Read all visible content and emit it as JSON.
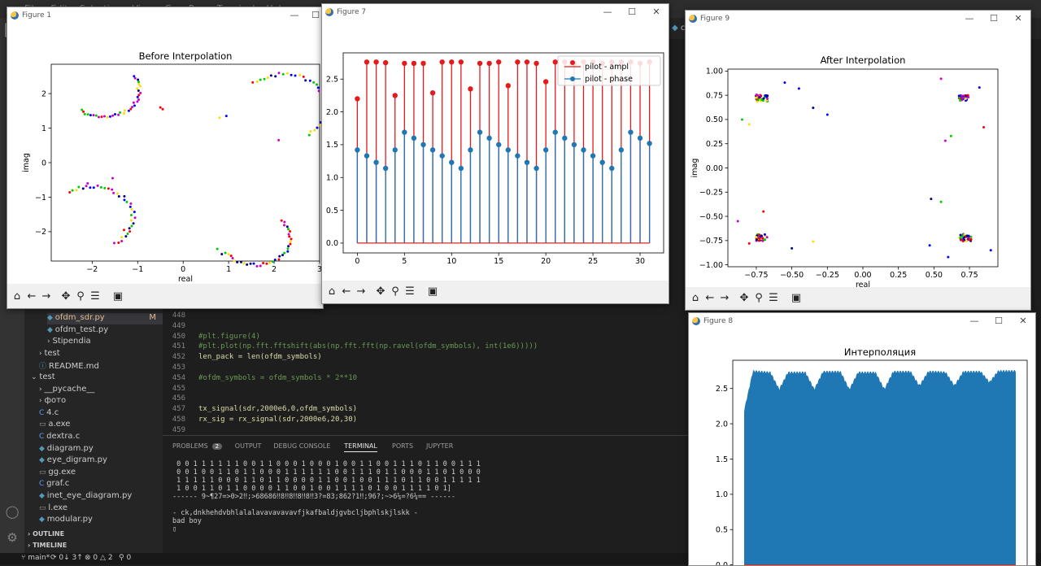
{
  "vscode": {
    "menu": [
      "File",
      "Edit",
      "Selection",
      "View",
      "Go",
      "Run",
      "Terminal",
      "Help"
    ],
    "tab_fragment": "clas",
    "sidebar": {
      "files": [
        {
          "name": "ofdm_sdr.py",
          "badge": "M",
          "icon": "python-icon",
          "indent": 2,
          "selected": true,
          "color": "#e2c08d"
        },
        {
          "name": "ofdm_test.py",
          "badge": "",
          "icon": "python-icon",
          "indent": 2,
          "selected": false,
          "color": "#cccccc"
        },
        {
          "name": "Stipendia",
          "badge": "",
          "icon": "chevron-right-icon",
          "indent": 2,
          "selected": false,
          "color": "#cccccc"
        },
        {
          "name": "test",
          "badge": "",
          "icon": "chevron-right-icon",
          "indent": 1,
          "selected": false,
          "color": "#cccccc"
        },
        {
          "name": "README.md",
          "badge": "",
          "icon": "info-icon",
          "indent": 1,
          "selected": false,
          "color": "#cccccc"
        },
        {
          "name": "test",
          "badge": "",
          "icon": "chevron-down-icon",
          "indent": 0,
          "selected": false,
          "color": "#cccccc"
        },
        {
          "name": "__pycache__",
          "badge": "",
          "icon": "chevron-right-icon",
          "indent": 1,
          "selected": false,
          "color": "#cccccc"
        },
        {
          "name": "фото",
          "badge": "",
          "icon": "chevron-right-icon",
          "indent": 1,
          "selected": false,
          "color": "#cccccc"
        },
        {
          "name": "4.c",
          "badge": "",
          "icon": "c-icon",
          "indent": 1,
          "selected": false,
          "color": "#cccccc"
        },
        {
          "name": "a.exe",
          "badge": "",
          "icon": "file-icon",
          "indent": 1,
          "selected": false,
          "color": "#cccccc"
        },
        {
          "name": "dextra.c",
          "badge": "",
          "icon": "c-icon",
          "indent": 1,
          "selected": false,
          "color": "#cccccc"
        },
        {
          "name": "diagram.py",
          "badge": "",
          "icon": "python-icon",
          "indent": 1,
          "selected": false,
          "color": "#cccccc"
        },
        {
          "name": "eye_digram.py",
          "badge": "",
          "icon": "python-icon",
          "indent": 1,
          "selected": false,
          "color": "#cccccc"
        },
        {
          "name": "gg.exe",
          "badge": "",
          "icon": "file-icon",
          "indent": 1,
          "selected": false,
          "color": "#cccccc"
        },
        {
          "name": "graf.c",
          "badge": "",
          "icon": "c-icon",
          "indent": 1,
          "selected": false,
          "color": "#cccccc"
        },
        {
          "name": "inet_eye_diagram.py",
          "badge": "",
          "icon": "python-icon",
          "indent": 1,
          "selected": false,
          "color": "#cccccc"
        },
        {
          "name": "l.exe",
          "badge": "",
          "icon": "file-icon",
          "indent": 1,
          "selected": false,
          "color": "#cccccc"
        },
        {
          "name": "modular.py",
          "badge": "",
          "icon": "python-icon",
          "indent": 1,
          "selected": false,
          "color": "#cccccc"
        }
      ],
      "outline": "OUTLINE",
      "timeline": "TIMELINE"
    },
    "editor_lines": [
      {
        "num": "448",
        "text": "",
        "color": "#d4d4d4"
      },
      {
        "num": "449",
        "text": "",
        "color": "#d4d4d4"
      },
      {
        "num": "450",
        "text": "#plt.figure(4)",
        "color": "#6a9955"
      },
      {
        "num": "451",
        "text": "#plt.plot(np.fft.fftshift(abs(np.fft.fft(np.ravel(ofdm_symbols), int(1e6)))))",
        "color": "#6a9955"
      },
      {
        "num": "452",
        "text": "len_pack = len(ofdm_symbols)",
        "color": "#dcdcaa"
      },
      {
        "num": "453",
        "text": "",
        "color": "#d4d4d4"
      },
      {
        "num": "454",
        "text": "#ofdm_symbols = ofdm_symbols * 2**10",
        "color": "#6a9955"
      },
      {
        "num": "455",
        "text": "",
        "color": "#d4d4d4"
      },
      {
        "num": "456",
        "text": "",
        "color": "#d4d4d4"
      },
      {
        "num": "457",
        "text": "tx_signal(sdr,2000e6,0,ofdm_symbols)",
        "color": "#dcdcaa"
      },
      {
        "num": "458",
        "text": "rx_sig = rx_signal(sdr,2000e6,20,30)",
        "color": "#dcdcaa"
      },
      {
        "num": "459",
        "text": "",
        "color": "#d4d4d4"
      }
    ],
    "panel_tabs": [
      "PROBLEMS",
      "OUTPUT",
      "DEBUG CONSOLE",
      "TERMINAL",
      "PORTS",
      "JUPYTER"
    ],
    "problems_count": "2",
    "active_panel_tab": "TERMINAL",
    "terminal_lines": [
      " 0 0 1 1 1 1 1 1 0 0 1 1 0 0 0 1 0 0 0 1 0 0 1 1 0 0 1 1 1 0 1 1 0 0 1 1 1",
      " 0 0 1 0 0 1 1 0 1 1 0 0 0 1 1 1 1 1 1 0 0 1 1 1 0 1 1 0 0 0 1 1 0 1 0 0 0",
      " 1 1 1 1 1 0 0 0 1 1 0 1 1 0 0 0 0 1 1 0 0 1 0 0 1 1 1 0 1 1 0 0 1 1 1 1 1",
      " 1 0 0 1 1 0 1 1 0 0 0 0 1 1 0 0 1 0 0 1 1 1 1 0 1 0 0 1 1 1 1 0 1]",
      "------ 9~¶27=>0>2‼;>68686‼8‼8‼8‼8‼3?=83;862?1‼;96?;~>6¼=?6¼== ------",
      "",
      "- ck,dnkhehdvbhlalalavavavavavfjkafbaldjgvbcljbphlskjlskk -",
      "bad boy",
      "▯"
    ],
    "status": {
      "branch": "main*",
      "sync": "0↓ 3↑",
      "errors": "0",
      "warnings": "2",
      "ports": "0"
    }
  },
  "figures": {
    "fig1": {
      "window_title": "Figure 1",
      "chart_data": {
        "type": "scatter",
        "title": "Before Interpolation",
        "xlabel": "real",
        "ylabel": "imag",
        "xlim": [
          -2.9,
          3.0
        ],
        "ylim": [
          -2.85,
          2.85
        ],
        "xticks": [
          -2,
          -1,
          0,
          1,
          2,
          3
        ],
        "yticks": [
          -2,
          -1,
          0,
          1,
          2
        ],
        "colors": [
          "#ff0000",
          "#0000ff",
          "#00cc00",
          "#ffdd00",
          "#cc00cc",
          "#000080"
        ],
        "clusters": [
          {
            "arc_center": [
              -1.75,
              2.1
            ],
            "arc_from": [
              -2.25,
              1.5
            ],
            "arc_to": [
              -1.0,
              2.55
            ],
            "extra": [
              [
                -0.5,
                1.6
              ],
              [
                -0.45,
                1.55
              ]
            ]
          },
          {
            "arc_center": [
              2.2,
              1.6
            ],
            "arc_from": [
              1.55,
              2.3
            ],
            "arc_to": [
              2.7,
              0.9
            ],
            "extra": [
              [
                0.8,
                1.3
              ],
              [
                0.95,
                1.35
              ],
              [
                2.1,
                0.65
              ]
            ]
          },
          {
            "arc_center": [
              -2.0,
              -1.6
            ],
            "arc_from": [
              -2.5,
              -0.85
            ],
            "arc_to": [
              -1.6,
              -2.2
            ],
            "extra": [
              [
                -1.55,
                -0.45
              ],
              [
                -1.3,
                -1.95
              ],
              [
                -2.1,
                -0.6
              ]
            ]
          },
          {
            "arc_center": [
              1.6,
              -2.2
            ],
            "arc_from": [
              0.95,
              -2.6
            ],
            "arc_to": [
              2.3,
              -1.55
            ],
            "extra": [
              [
                0.75,
                -2.5
              ],
              [
                0.85,
                -2.65
              ]
            ]
          }
        ]
      }
    },
    "fig7": {
      "window_title": "Figure 7",
      "chart_data": {
        "type": "stem",
        "xlim": [
          -1.5,
          32.5
        ],
        "ylim": [
          -0.15,
          2.9
        ],
        "xticks": [
          0,
          5,
          10,
          15,
          20,
          25,
          30
        ],
        "yticks": [
          0.0,
          0.5,
          1.0,
          1.5,
          2.0,
          2.5
        ],
        "x": [
          0,
          1,
          2,
          3,
          4,
          5,
          6,
          7,
          8,
          9,
          10,
          11,
          12,
          13,
          14,
          15,
          16,
          17,
          18,
          19,
          20,
          21,
          22,
          23,
          24,
          25,
          26,
          27,
          28,
          29,
          30,
          31
        ],
        "series": [
          {
            "name": "pilot - ampl",
            "color": "#e41a1c",
            "values": [
              2.2,
              2.76,
              2.76,
              2.75,
              2.25,
              2.74,
              2.74,
              2.74,
              2.29,
              2.76,
              2.76,
              2.76,
              2.35,
              2.74,
              2.74,
              2.76,
              2.4,
              2.76,
              2.76,
              2.74,
              2.46,
              2.76,
              2.76,
              2.74,
              2.76,
              2.76,
              2.74,
              2.76,
              2.76,
              2.76,
              2.74,
              2.76
            ]
          },
          {
            "name": "pilot - phase",
            "color": "#1f77b4",
            "values": [
              1.42,
              1.33,
              1.23,
              1.14,
              1.42,
              1.69,
              1.6,
              1.5,
              1.42,
              1.33,
              1.23,
              1.14,
              1.42,
              1.69,
              1.6,
              1.5,
              1.42,
              1.33,
              1.23,
              1.14,
              1.42,
              1.69,
              1.6,
              1.5,
              1.42,
              1.33,
              1.23,
              1.14,
              1.42,
              1.69,
              1.6,
              1.52
            ]
          }
        ],
        "legend_position": "upper right"
      }
    },
    "fig9": {
      "window_title": "Figure 9",
      "chart_data": {
        "type": "scatter",
        "title": "After Interpolation",
        "xlabel": "real",
        "ylabel": "imag",
        "xlim": [
          -0.95,
          0.95
        ],
        "ylim": [
          -1.02,
          1.02
        ],
        "xticks": [
          -0.75,
          -0.5,
          -0.25,
          0.0,
          0.25,
          0.5,
          0.75
        ],
        "yticks": [
          -1.0,
          -0.75,
          -0.5,
          -0.25,
          0.0,
          0.25,
          0.5,
          0.75,
          1.0
        ],
        "colors": [
          "#ff0000",
          "#0000ff",
          "#00cc00",
          "#ffdd00",
          "#cc00cc",
          "#000080"
        ],
        "clusters": [
          {
            "center": [
              -0.71,
              0.72
            ],
            "spread": 0.06,
            "extra": [
              [
                -0.55,
                0.88
              ],
              [
                -0.45,
                0.82
              ],
              [
                -0.85,
                0.5
              ],
              [
                -0.8,
                0.45
              ],
              [
                -0.25,
                0.55
              ],
              [
                -0.35,
                0.62
              ]
            ]
          },
          {
            "center": [
              0.71,
              0.72
            ],
            "spread": 0.05,
            "extra": [
              [
                0.58,
                0.28
              ],
              [
                0.62,
                0.33
              ],
              [
                0.55,
                0.92
              ],
              [
                0.85,
                0.42
              ],
              [
                0.82,
                0.83
              ]
            ]
          },
          {
            "center": [
              -0.71,
              -0.72
            ],
            "spread": 0.06,
            "extra": [
              [
                -0.88,
                -0.55
              ],
              [
                -0.7,
                -0.45
              ],
              [
                -0.5,
                -0.83
              ],
              [
                -0.35,
                -0.76
              ],
              [
                -0.8,
                -0.78
              ]
            ]
          },
          {
            "center": [
              0.72,
              -0.72
            ],
            "spread": 0.06,
            "extra": [
              [
                0.48,
                -0.32
              ],
              [
                0.55,
                -0.35
              ],
              [
                0.6,
                -0.92
              ],
              [
                0.47,
                -0.8
              ],
              [
                0.9,
                -0.85
              ]
            ]
          }
        ]
      }
    },
    "fig8": {
      "window_title": "Figure 8",
      "chart_data": {
        "type": "stem",
        "title": "Интерполяция",
        "ylim": [
          -0.12,
          2.9
        ],
        "yticks": [
          0.0,
          0.5,
          1.0,
          1.5,
          2.0,
          2.5
        ],
        "xticks_count": 7,
        "color": "#1f77b4",
        "baseline_color": "#d62728",
        "envelope": [
          2.2,
          2.76,
          2.75,
          2.74,
          2.5,
          2.74,
          2.74,
          2.74,
          2.5,
          2.75,
          2.75,
          2.75,
          2.5,
          2.74,
          2.74,
          2.74,
          2.5,
          2.75,
          2.75,
          2.75,
          2.55,
          2.75,
          2.75,
          2.74,
          2.55,
          2.75,
          2.75,
          2.75,
          2.6,
          2.76,
          2.76,
          2.76
        ]
      }
    },
    "toolbar_icons": [
      "home-icon",
      "back-icon",
      "forward-icon",
      "pan-icon",
      "zoom-icon",
      "configure-icon",
      "save-icon"
    ]
  }
}
